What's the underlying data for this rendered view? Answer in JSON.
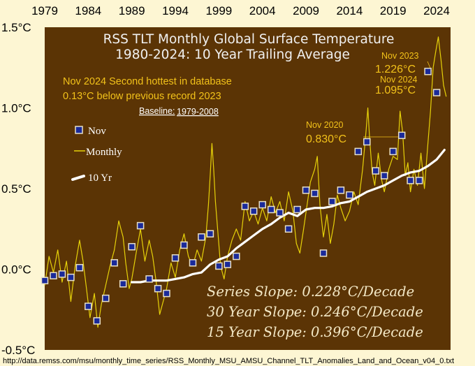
{
  "chart_data": {
    "type": "line",
    "title": "RSS TLT Monthly Global Surface Temperature",
    "subtitle": "1980-2024: 10 Year Trailing Average",
    "x_ticks": [
      "1979",
      "1984",
      "1989",
      "1994",
      "1999",
      "2004",
      "2009",
      "2014",
      "2019",
      "2024"
    ],
    "y_ticks": [
      "1.5°C",
      "1.0°C",
      "0.5°C",
      "0.0°C",
      "-0.5°C"
    ],
    "ylim": [
      -0.5,
      1.5
    ],
    "xlim": [
      1979,
      2025.6
    ],
    "notes": [
      "Nov 2024  Second hottest in database",
      "0.13°C below previous record 2023"
    ],
    "baseline_label": "Baseline:",
    "baseline_value": "1979-2008",
    "annotations": [
      {
        "label": "Nov 2020",
        "value": "0.830°C"
      },
      {
        "label": "Nov 2023",
        "value": "1.226°C"
      },
      {
        "label": "Nov 2024",
        "value": "1.095°C"
      }
    ],
    "legend": [
      "Nov",
      "Monthly",
      "10 Yr"
    ],
    "slopes": [
      "Series Slope: 0.228°C/Decade",
      "30 Year Slope: 0.246°C/Decade",
      "15 Year Slope: 0.396°C/Decade"
    ],
    "source": "http://data.remss.com/msu/monthly_time_series/RSS_Monthly_MSU_AMSU_Channel_TLT_Anomalies_Land_and_Ocean_v04_0.txt",
    "series": [
      {
        "name": "Nov",
        "x": [
          1979,
          1980,
          1981,
          1982,
          1983,
          1984,
          1985,
          1986,
          1987,
          1988,
          1989,
          1990,
          1991,
          1992,
          1993,
          1994,
          1995,
          1996,
          1997,
          1998,
          1999,
          2000,
          2001,
          2002,
          2003,
          2004,
          2005,
          2006,
          2007,
          2008,
          2009,
          2010,
          2011,
          2012,
          2013,
          2014,
          2015,
          2016,
          2017,
          2018,
          2019,
          2020,
          2021,
          2022,
          2023,
          2024
        ],
        "y": [
          -0.07,
          -0.04,
          -0.03,
          -0.05,
          0.01,
          -0.23,
          -0.32,
          -0.18,
          0.04,
          -0.09,
          0.14,
          0.27,
          -0.06,
          -0.12,
          -0.15,
          0.07,
          0.15,
          0.04,
          0.2,
          0.22,
          0.02,
          0.03,
          0.08,
          0.39,
          0.36,
          0.4,
          0.37,
          0.35,
          0.25,
          0.37,
          0.49,
          0.47,
          0.1,
          0.42,
          0.49,
          0.46,
          0.73,
          0.79,
          0.61,
          0.58,
          0.73,
          0.83,
          0.55,
          0.55,
          1.226,
          1.095
        ]
      },
      {
        "name": "Monthly",
        "x": [
          1979.0,
          1979.5,
          1980.0,
          1980.5,
          1981.0,
          1981.5,
          1982.0,
          1982.5,
          1983.0,
          1983.4,
          1983.8,
          1984.2,
          1984.7,
          1985.1,
          1985.5,
          1986.0,
          1986.5,
          1987.0,
          1987.5,
          1988.0,
          1988.3,
          1988.7,
          1989.0,
          1989.5,
          1990.0,
          1990.5,
          1991.0,
          1991.4,
          1991.8,
          1992.2,
          1992.7,
          1993.0,
          1993.5,
          1994.0,
          1994.5,
          1995.0,
          1995.5,
          1996.0,
          1996.5,
          1997.0,
          1997.5,
          1997.8,
          1998.0,
          1998.2,
          1998.4,
          1998.6,
          1998.9,
          1999.2,
          1999.6,
          2000.0,
          2000.5,
          2001.0,
          2001.5,
          2002.0,
          2002.5,
          2003.0,
          2003.5,
          2004.0,
          2004.5,
          2005.0,
          2005.5,
          2006.0,
          2006.5,
          2007.0,
          2007.5,
          2007.9,
          2008.3,
          2008.7,
          2009.0,
          2009.5,
          2010.0,
          2010.3,
          2010.6,
          2011.0,
          2011.4,
          2011.8,
          2012.2,
          2012.6,
          2013.0,
          2013.5,
          2014.0,
          2014.5,
          2015.0,
          2015.5,
          2015.9,
          2016.1,
          2016.3,
          2016.6,
          2016.9,
          2017.3,
          2017.7,
          2018.0,
          2018.5,
          2019.0,
          2019.5,
          2019.8,
          2020.1,
          2020.4,
          2020.7,
          2021.0,
          2021.4,
          2021.8,
          2022.2,
          2022.6,
          2023.0,
          2023.3,
          2023.6,
          2023.9,
          2024.2,
          2024.5,
          2024.8,
          2025.1
        ],
        "y": [
          -0.1,
          0.08,
          -0.02,
          0.12,
          -0.08,
          0.05,
          -0.2,
          0.02,
          0.18,
          0.05,
          -0.12,
          -0.3,
          -0.15,
          -0.36,
          -0.22,
          -0.1,
          0.02,
          0.12,
          0.3,
          0.2,
          0.04,
          -0.12,
          -0.06,
          0.1,
          0.25,
          0.05,
          0.18,
          0.08,
          -0.08,
          -0.28,
          -0.18,
          -0.12,
          0.04,
          -0.05,
          0.12,
          0.22,
          0.08,
          0.02,
          0.12,
          0.05,
          0.2,
          0.4,
          0.58,
          0.78,
          0.62,
          0.42,
          0.22,
          0.02,
          -0.06,
          0.08,
          0.18,
          0.25,
          0.18,
          0.42,
          0.3,
          0.36,
          0.28,
          0.38,
          0.3,
          0.45,
          0.35,
          0.42,
          0.3,
          0.48,
          0.36,
          0.16,
          0.1,
          0.24,
          0.35,
          0.54,
          0.62,
          0.7,
          0.4,
          0.2,
          0.34,
          0.16,
          0.28,
          0.46,
          0.38,
          0.3,
          0.36,
          0.48,
          0.4,
          0.62,
          0.86,
          1.0,
          0.82,
          0.6,
          0.52,
          0.72,
          0.55,
          0.48,
          0.62,
          0.7,
          0.68,
          0.98,
          0.85,
          0.58,
          0.66,
          0.48,
          0.62,
          0.52,
          0.72,
          0.5,
          0.78,
          0.98,
          1.25,
          1.35,
          1.44,
          1.3,
          1.14,
          1.07
        ]
      },
      {
        "name": "10 Yr",
        "x": [
          1989,
          1990,
          1991,
          1992,
          1993,
          1994,
          1995,
          1996,
          1997,
          1998,
          1999,
          2000,
          2001,
          2002,
          2003,
          2004,
          2005,
          2006,
          2007,
          2008,
          2009,
          2010,
          2011,
          2012,
          2013,
          2014,
          2015,
          2016,
          2017,
          2018,
          2019,
          2020,
          2021,
          2022,
          2023,
          2024,
          2024.9
        ],
        "y": [
          -0.08,
          -0.08,
          -0.07,
          -0.07,
          -0.07,
          -0.06,
          -0.05,
          -0.03,
          -0.02,
          0.03,
          0.06,
          0.08,
          0.13,
          0.17,
          0.21,
          0.25,
          0.28,
          0.32,
          0.35,
          0.33,
          0.37,
          0.38,
          0.38,
          0.39,
          0.41,
          0.42,
          0.45,
          0.48,
          0.5,
          0.52,
          0.55,
          0.58,
          0.6,
          0.61,
          0.64,
          0.68,
          0.74
        ]
      }
    ]
  }
}
